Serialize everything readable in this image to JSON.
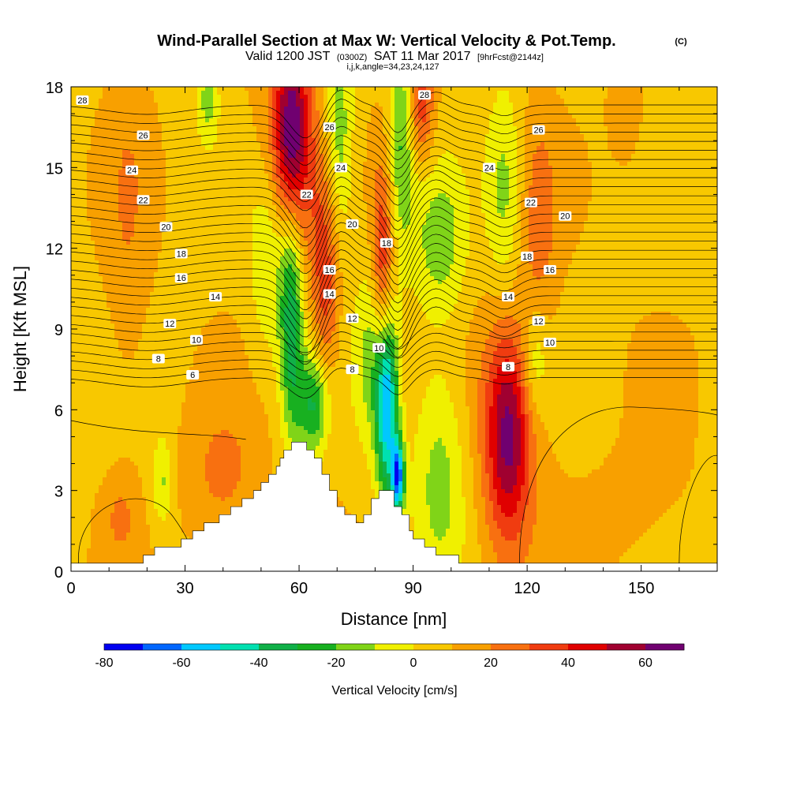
{
  "chart_data": {
    "type": "heatmap",
    "title": "Wind-Parallel Section at Max W: Vertical Velocity & Pot.Temp.",
    "title_mark": "(C)",
    "subtitle_parts": [
      "Valid 1200 JST",
      "(0300Z)",
      "SAT 11 Mar 2017",
      "[9hrFcst@2144z]"
    ],
    "subtitle2": "i,j,k,angle=34,23,24,127",
    "xlabel": "Distance [nm]",
    "ylabel": "Height [Kft MSL]",
    "xlim": [
      0,
      170
    ],
    "ylim": [
      0,
      18
    ],
    "xticks": [
      0,
      30,
      60,
      90,
      120,
      150
    ],
    "xtick_labels": [
      "0",
      "30",
      "60",
      "90",
      "120",
      "150"
    ],
    "yticks": [
      0,
      3,
      6,
      9,
      12,
      15,
      18
    ],
    "ytick_labels": [
      "0",
      "3",
      "6",
      "9",
      "12",
      "15",
      "18"
    ],
    "colorbar": {
      "label": "Vertical Velocity [cm/s]",
      "min": -80,
      "max": 70,
      "step": 10,
      "tick_values": [
        -80,
        -60,
        -40,
        -20,
        0,
        20,
        40,
        60
      ],
      "tick_labels": [
        "-80",
        "-60",
        "-40",
        "-20",
        "0",
        "20",
        "40",
        "60"
      ],
      "colors": [
        "#0000f0",
        "#0066ff",
        "#00c8ff",
        "#00e0b0",
        "#10b048",
        "#18b020",
        "#80d418",
        "#f0f000",
        "#f8c800",
        "#f8a000",
        "#f87010",
        "#f03c10",
        "#e00000",
        "#a00030",
        "#700070"
      ]
    },
    "terrain": [
      [
        0,
        0.3
      ],
      [
        19,
        0.3
      ],
      [
        19,
        0.6
      ],
      [
        22,
        0.6
      ],
      [
        22,
        0.9
      ],
      [
        29,
        0.9
      ],
      [
        29,
        1.2
      ],
      [
        32,
        1.2
      ],
      [
        32,
        1.5
      ],
      [
        35,
        1.5
      ],
      [
        35,
        1.8
      ],
      [
        39,
        1.8
      ],
      [
        39,
        2.1
      ],
      [
        42,
        2.1
      ],
      [
        42,
        2.4
      ],
      [
        45,
        2.4
      ],
      [
        45,
        2.7
      ],
      [
        48,
        2.7
      ],
      [
        48,
        3.0
      ],
      [
        50,
        3.0
      ],
      [
        50,
        3.3
      ],
      [
        52,
        3.3
      ],
      [
        52,
        3.6
      ],
      [
        54,
        3.6
      ],
      [
        54,
        3.9
      ],
      [
        55,
        3.9
      ],
      [
        55,
        4.2
      ],
      [
        56,
        4.2
      ],
      [
        56,
        4.5
      ],
      [
        58,
        4.5
      ],
      [
        58,
        4.8
      ],
      [
        62,
        4.8
      ],
      [
        62,
        4.5
      ],
      [
        64,
        4.5
      ],
      [
        64,
        4.2
      ],
      [
        66,
        4.2
      ],
      [
        66,
        3.6
      ],
      [
        68,
        3.6
      ],
      [
        68,
        3.0
      ],
      [
        70,
        3.0
      ],
      [
        70,
        2.4
      ],
      [
        72,
        2.4
      ],
      [
        72,
        2.1
      ],
      [
        75,
        2.1
      ],
      [
        75,
        1.8
      ],
      [
        77,
        1.8
      ],
      [
        77,
        2.1
      ],
      [
        79,
        2.1
      ],
      [
        79,
        2.7
      ],
      [
        81,
        2.7
      ],
      [
        81,
        3.0
      ],
      [
        85,
        3.0
      ],
      [
        85,
        2.4
      ],
      [
        87,
        2.4
      ],
      [
        87,
        2.1
      ],
      [
        89,
        2.1
      ],
      [
        89,
        1.5
      ],
      [
        90,
        1.5
      ],
      [
        90,
        1.2
      ],
      [
        93,
        1.2
      ],
      [
        93,
        0.9
      ],
      [
        96,
        0.9
      ],
      [
        96,
        0.6
      ],
      [
        102,
        0.6
      ],
      [
        102,
        0.3
      ],
      [
        170,
        0.3
      ]
    ],
    "vertical_velocity_features": [
      {
        "x": 58,
        "z": 16.2,
        "w": 45,
        "sx": 3.0,
        "sz": 2.4
      },
      {
        "x": 58,
        "z": 16.2,
        "w": 20,
        "sx": 6.0,
        "sz": 3.8
      },
      {
        "x": 70,
        "z": 16.0,
        "w": -30,
        "sx": 3.0,
        "sz": 2.8
      },
      {
        "x": 87,
        "z": 16.2,
        "w": -30,
        "sx": 2.5,
        "sz": 2.8
      },
      {
        "x": 92,
        "z": 17.2,
        "w": 30,
        "sx": 2.5,
        "sz": 1.5
      },
      {
        "x": 67,
        "z": 11.0,
        "w": 28,
        "sx": 2.5,
        "sz": 3.5
      },
      {
        "x": 82,
        "z": 10.8,
        "w": 40,
        "sx": 2.0,
        "sz": 3.0
      },
      {
        "x": 58,
        "z": 9.5,
        "w": -45,
        "sx": 2.2,
        "sz": 3.2
      },
      {
        "x": 64,
        "z": 6.2,
        "w": -40,
        "sx": 3.0,
        "sz": 1.4
      },
      {
        "x": 52,
        "z": 11.5,
        "w": -22,
        "sx": 3.5,
        "sz": 2.5
      },
      {
        "x": 83,
        "z": 6.2,
        "w": -65,
        "sx": 2.0,
        "sz": 2.5
      },
      {
        "x": 86,
        "z": 3.5,
        "w": -70,
        "sx": 1.2,
        "sz": 1.0
      },
      {
        "x": 80,
        "z": 8.0,
        "w": -25,
        "sx": 3.5,
        "sz": 2.5
      },
      {
        "x": 97,
        "z": 3.8,
        "w": -22,
        "sx": 5.0,
        "sz": 3.0
      },
      {
        "x": 97,
        "z": 12.2,
        "w": -22,
        "sx": 5.0,
        "sz": 2.0
      },
      {
        "x": 115,
        "z": 5.0,
        "w": 45,
        "sx": 4.0,
        "sz": 2.6
      },
      {
        "x": 115,
        "z": 5.5,
        "w": 12,
        "sx": 7.0,
        "sz": 4.0
      },
      {
        "x": 114,
        "z": 14.0,
        "w": -22,
        "sx": 3.5,
        "sz": 2.8
      },
      {
        "x": 123,
        "z": 13.0,
        "w": 15,
        "sx": 3.5,
        "sz": 3.0
      },
      {
        "x": 122,
        "z": 7.8,
        "w": -20,
        "sx": 2.5,
        "sz": 1.5
      },
      {
        "x": 24,
        "z": 3.3,
        "w": -20,
        "sx": 2.0,
        "sz": 1.2
      },
      {
        "x": 13,
        "z": 2.0,
        "w": 12,
        "sx": 3.0,
        "sz": 1.0
      },
      {
        "x": 40,
        "z": 3.5,
        "w": 15,
        "sx": 7.0,
        "sz": 1.8
      },
      {
        "x": 36,
        "z": 17.6,
        "w": -22,
        "sx": 2.0,
        "sz": 1.2
      },
      {
        "x": 15,
        "z": 13.0,
        "w": 10,
        "sx": 4.0,
        "sz": 5.0
      },
      {
        "x": 146,
        "z": 17.2,
        "w": 10,
        "sx": 3.0,
        "sz": 1.5
      },
      {
        "x": 150,
        "z": 2.0,
        "w": 5,
        "sx": 12.0,
        "sz": 2.0
      }
    ],
    "potential_temperature_contours": {
      "levels": [
        6,
        8,
        10,
        12,
        14,
        16,
        18,
        20,
        22,
        24,
        26,
        28
      ],
      "labels": [
        {
          "text": "28",
          "x": 3,
          "z": 17.5
        },
        {
          "text": "26",
          "x": 19,
          "z": 16.2
        },
        {
          "text": "24",
          "x": 16,
          "z": 14.9
        },
        {
          "text": "22",
          "x": 19,
          "z": 13.8
        },
        {
          "text": "20",
          "x": 25,
          "z": 12.8
        },
        {
          "text": "18",
          "x": 29,
          "z": 11.8
        },
        {
          "text": "16",
          "x": 29,
          "z": 10.9
        },
        {
          "text": "14",
          "x": 38,
          "z": 10.2
        },
        {
          "text": "12",
          "x": 26,
          "z": 9.2
        },
        {
          "text": "10",
          "x": 33,
          "z": 8.6
        },
        {
          "text": "8",
          "x": 23,
          "z": 7.9
        },
        {
          "text": "6",
          "x": 32,
          "z": 7.3
        },
        {
          "text": "28",
          "x": 93,
          "z": 17.7
        },
        {
          "text": "26",
          "x": 68,
          "z": 16.5
        },
        {
          "text": "24",
          "x": 71,
          "z": 15.0
        },
        {
          "text": "22",
          "x": 62,
          "z": 14.0
        },
        {
          "text": "20",
          "x": 74,
          "z": 12.9
        },
        {
          "text": "18",
          "x": 83,
          "z": 12.2
        },
        {
          "text": "16",
          "x": 68,
          "z": 11.2
        },
        {
          "text": "14",
          "x": 68,
          "z": 10.3
        },
        {
          "text": "12",
          "x": 74,
          "z": 9.4
        },
        {
          "text": "10",
          "x": 81,
          "z": 8.3
        },
        {
          "text": "8",
          "x": 74,
          "z": 7.5
        },
        {
          "text": "26",
          "x": 123,
          "z": 16.4
        },
        {
          "text": "24",
          "x": 110,
          "z": 15.0
        },
        {
          "text": "22",
          "x": 121,
          "z": 13.7
        },
        {
          "text": "20",
          "x": 130,
          "z": 13.2
        },
        {
          "text": "18",
          "x": 120,
          "z": 11.7
        },
        {
          "text": "16",
          "x": 126,
          "z": 11.2
        },
        {
          "text": "14",
          "x": 115,
          "z": 10.2
        },
        {
          "text": "12",
          "x": 123,
          "z": 9.3
        },
        {
          "text": "10",
          "x": 126,
          "z": 8.5
        },
        {
          "text": "8",
          "x": 115,
          "z": 7.6
        }
      ]
    }
  }
}
